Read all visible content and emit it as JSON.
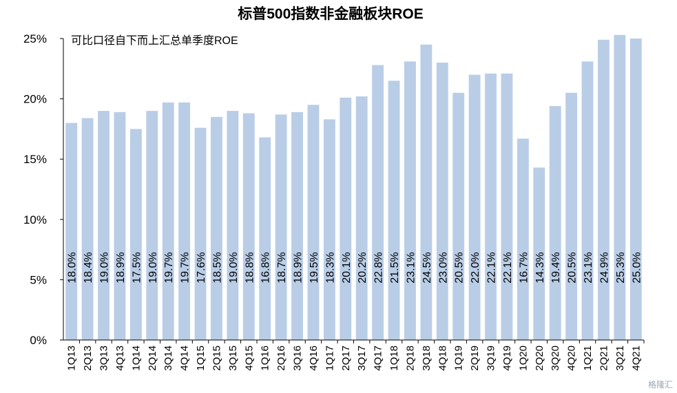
{
  "chart_data": {
    "type": "bar",
    "title": "标普500指数非金融板块ROE",
    "subtitle": "可比口径自下而上汇总单季度ROE",
    "xlabel": "",
    "ylabel": "",
    "ylim": [
      0,
      25
    ],
    "yticks": [
      "0%",
      "5%",
      "10%",
      "15%",
      "20%",
      "25%"
    ],
    "grid": false,
    "categories": [
      "1Q13",
      "2Q13",
      "3Q13",
      "4Q13",
      "1Q14",
      "2Q14",
      "3Q14",
      "4Q14",
      "1Q15",
      "2Q15",
      "3Q15",
      "4Q15",
      "1Q16",
      "2Q16",
      "3Q16",
      "4Q16",
      "1Q17",
      "2Q17",
      "3Q17",
      "4Q17",
      "1Q18",
      "2Q18",
      "3Q18",
      "4Q18",
      "1Q19",
      "2Q19",
      "3Q19",
      "4Q19",
      "1Q20",
      "2Q20",
      "3Q20",
      "4Q20",
      "1Q21",
      "2Q21",
      "3Q21",
      "4Q21"
    ],
    "values": [
      18.0,
      18.4,
      19.0,
      18.9,
      17.5,
      19.0,
      19.7,
      19.7,
      17.6,
      18.5,
      19.0,
      18.8,
      16.8,
      18.7,
      18.9,
      19.5,
      18.3,
      20.1,
      20.2,
      22.8,
      21.5,
      23.1,
      24.5,
      23.0,
      20.5,
      22.0,
      22.1,
      22.1,
      16.7,
      14.3,
      19.4,
      20.5,
      23.1,
      24.9,
      25.3,
      25.0
    ],
    "labels": [
      "18.0%",
      "18.4%",
      "19.0%",
      "18.9%",
      "17.5%",
      "19.0%",
      "19.7%",
      "19.7%",
      "17.6%",
      "18.5%",
      "19.0%",
      "18.8%",
      "16.8%",
      "18.7%",
      "18.9%",
      "19.5%",
      "18.3%",
      "20.1%",
      "20.2%",
      "22.8%",
      "21.5%",
      "23.1%",
      "24.5%",
      "23.0%",
      "20.5%",
      "22.0%",
      "22.1%",
      "22.1%",
      "16.7%",
      "14.3%",
      "19.4%",
      "20.5%",
      "23.1%",
      "24.9%",
      "25.3%",
      "25.0%"
    ],
    "bar_color": "#b9cde6"
  },
  "watermark": "格隆汇"
}
